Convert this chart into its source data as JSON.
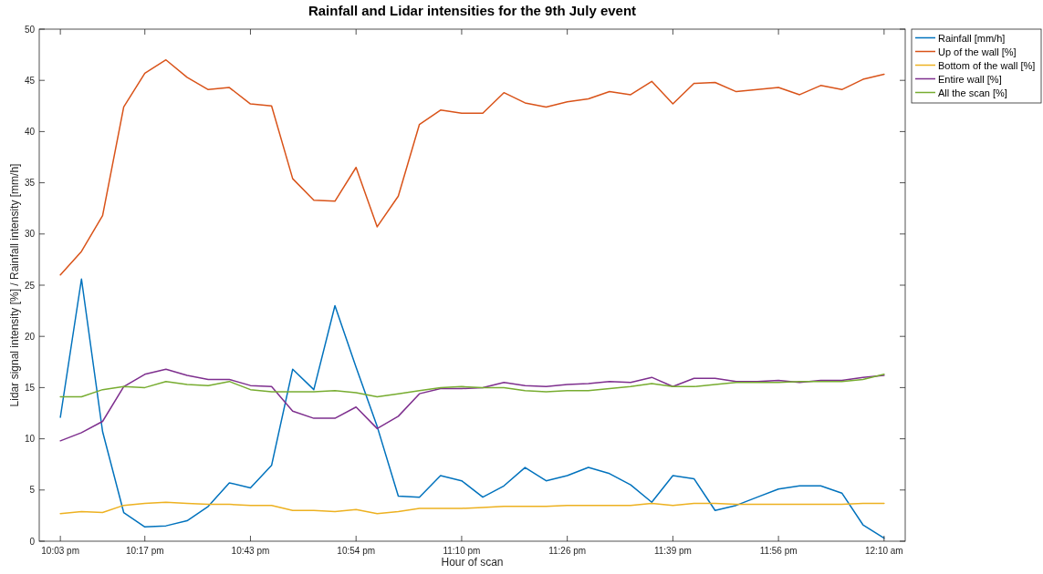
{
  "chart_data": {
    "type": "line",
    "title": "Rainfall and Lidar intensities for the 9th July event",
    "xlabel": "Hour of scan",
    "ylabel": "Lidar signal intensity [%] / Rainfall intensity [mm/h]",
    "categories": [
      "10:03 pm",
      null,
      null,
      null,
      "10:17 pm",
      null,
      null,
      null,
      null,
      "10:43 pm",
      null,
      null,
      null,
      null,
      "10:54 pm",
      null,
      null,
      null,
      null,
      "11:10 pm",
      null,
      null,
      null,
      null,
      "11:26 pm",
      null,
      null,
      null,
      null,
      "11:39 pm",
      null,
      null,
      null,
      null,
      "11:56 pm",
      null,
      null,
      null,
      null,
      "12:10 am"
    ],
    "ylim": [
      0,
      50
    ],
    "yticks": [
      0,
      5,
      10,
      15,
      20,
      25,
      30,
      35,
      40,
      45,
      50
    ],
    "legend": "top right",
    "series": [
      {
        "name": "Rainfall [mm/h]",
        "color": "#0072bd",
        "values": [
          12.1,
          25.6,
          10.7,
          2.8,
          1.4,
          1.5,
          2.0,
          3.4,
          5.7,
          5.2,
          7.4,
          16.8,
          14.8,
          23.0,
          17.0,
          11.2,
          4.4,
          4.3,
          6.4,
          5.9,
          4.3,
          5.4,
          7.2,
          5.9,
          6.4,
          7.2,
          6.6,
          5.5,
          3.8,
          6.4,
          6.1,
          3.0,
          3.5,
          4.3,
          5.1,
          5.4,
          5.4,
          4.7,
          1.6,
          0.3
        ]
      },
      {
        "name": "Up of the wall [%]",
        "color": "#d95319",
        "values": [
          26.0,
          28.3,
          31.8,
          42.4,
          45.7,
          47.0,
          45.3,
          44.1,
          44.3,
          42.7,
          42.5,
          35.4,
          33.3,
          33.2,
          36.5,
          30.7,
          33.7,
          40.7,
          42.1,
          41.8,
          41.8,
          43.8,
          42.8,
          42.4,
          42.9,
          43.2,
          43.9,
          43.6,
          44.9,
          42.7,
          44.7,
          44.8,
          43.9,
          44.1,
          44.3,
          43.6,
          44.5,
          44.1,
          45.1,
          45.6
        ]
      },
      {
        "name": "Bottom of the wall [%]",
        "color": "#edb120",
        "values": [
          2.7,
          2.9,
          2.8,
          3.5,
          3.7,
          3.8,
          3.7,
          3.6,
          3.6,
          3.5,
          3.5,
          3.0,
          3.0,
          2.9,
          3.1,
          2.7,
          2.9,
          3.2,
          3.2,
          3.2,
          3.3,
          3.4,
          3.4,
          3.4,
          3.5,
          3.5,
          3.5,
          3.5,
          3.7,
          3.5,
          3.7,
          3.7,
          3.6,
          3.6,
          3.6,
          3.6,
          3.6,
          3.6,
          3.7,
          3.7
        ]
      },
      {
        "name": "Entire wall [%]",
        "color": "#7e2f8e",
        "values": [
          9.8,
          10.6,
          11.7,
          15.1,
          16.3,
          16.8,
          16.2,
          15.8,
          15.8,
          15.2,
          15.1,
          12.7,
          12.0,
          12.0,
          13.1,
          11.0,
          12.2,
          14.4,
          14.9,
          14.9,
          15.0,
          15.5,
          15.2,
          15.1,
          15.3,
          15.4,
          15.6,
          15.5,
          16.0,
          15.1,
          15.9,
          15.9,
          15.6,
          15.6,
          15.7,
          15.5,
          15.7,
          15.7,
          16.0,
          16.2
        ]
      },
      {
        "name": "All the scan [%]",
        "color": "#77ac30",
        "values": [
          14.1,
          14.1,
          14.8,
          15.1,
          15.0,
          15.6,
          15.3,
          15.2,
          15.6,
          14.8,
          14.6,
          14.6,
          14.6,
          14.7,
          14.5,
          14.1,
          14.4,
          14.7,
          15.0,
          15.1,
          15.0,
          15.0,
          14.7,
          14.6,
          14.7,
          14.7,
          14.9,
          15.1,
          15.4,
          15.1,
          15.1,
          15.3,
          15.5,
          15.5,
          15.5,
          15.6,
          15.6,
          15.6,
          15.8,
          16.3
        ]
      }
    ]
  }
}
